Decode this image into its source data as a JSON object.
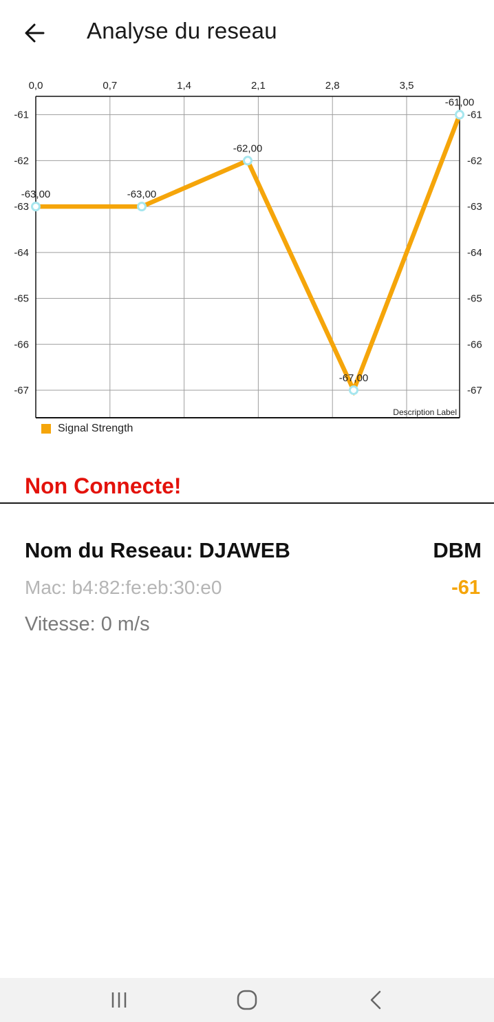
{
  "header": {
    "title": "Analyse du reseau",
    "back_icon": "arrow-left-icon"
  },
  "chart_data": {
    "type": "line",
    "title": "",
    "xlabel": "",
    "ylabel": "",
    "x_ticks": [
      "0,0",
      "0,7",
      "1,4",
      "2,1",
      "2,8",
      "3,5"
    ],
    "xlim": [
      0,
      4
    ],
    "ylim": [
      -67.6,
      -60.6
    ],
    "y_ticks": [
      -61,
      -62,
      -63,
      -64,
      -65,
      -66,
      -67
    ],
    "series": [
      {
        "name": "Signal Strength",
        "color": "#f5a50a",
        "x": [
          0,
          1,
          2,
          3,
          4
        ],
        "values": [
          -63,
          -63,
          -62,
          -67,
          -61
        ],
        "labels": [
          "-63,00",
          "-63,00",
          "-62,00",
          "-67,00",
          "-61,00"
        ]
      }
    ],
    "description": "Description Label",
    "grid": true,
    "legend": "bottom-left"
  },
  "status": {
    "text": "Non Connecte!",
    "color": "#e3120b"
  },
  "network": {
    "name": "Nom du Reseau: DJAWEB",
    "dbm_label": "DBM",
    "dbm_value": "-61",
    "dbm_color": "#f5a50a",
    "mac": "Mac: b4:82:fe:eb:30:e0",
    "speed": "Vitesse: 0 m/s"
  },
  "navbar": {
    "recents_icon": "recents-icon",
    "home_icon": "home-icon",
    "back_icon": "chevron-left-icon"
  }
}
